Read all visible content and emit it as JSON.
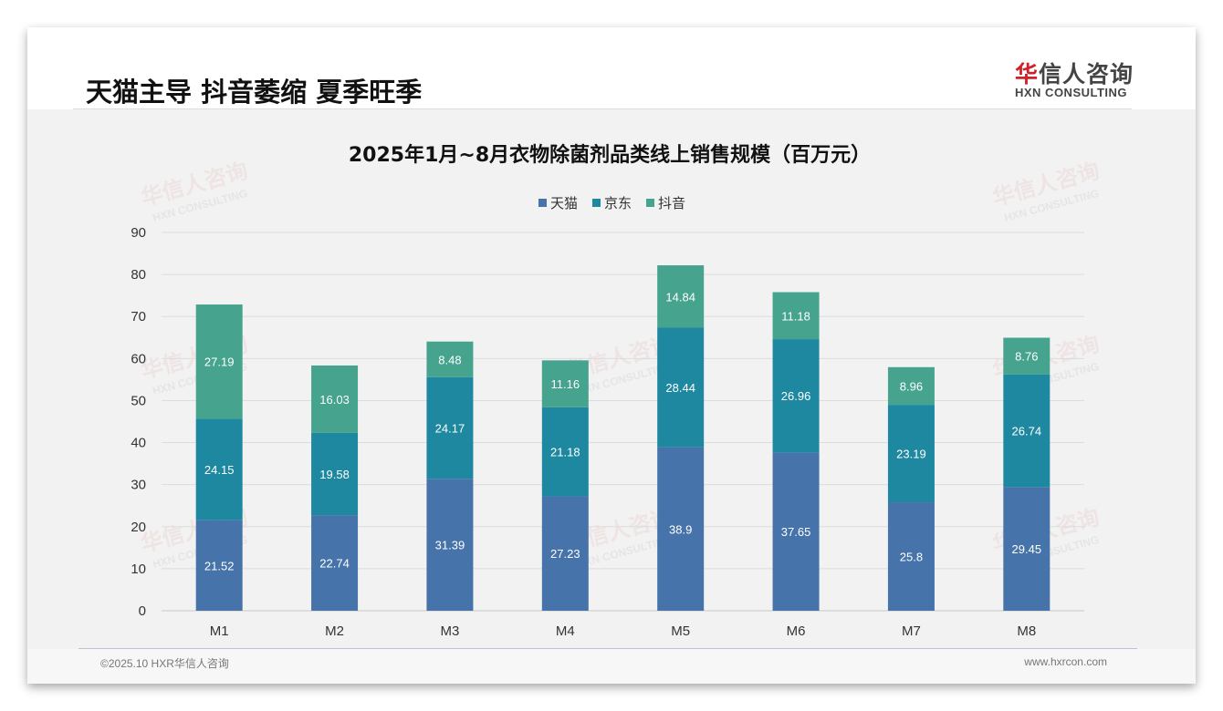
{
  "header": {
    "title": "天猫主导 抖音萎缩 夏季旺季",
    "logo_cn_red": "华",
    "logo_cn": "信人咨询",
    "logo_en": "HXN CONSULTING"
  },
  "watermark": {
    "cn": "华信人咨询",
    "en": "HXN CONSULTING"
  },
  "footer": {
    "copyright": "©2025.10 HXR华信人咨询",
    "url": "www.hxrcon.com"
  },
  "colors": {
    "tmall": "#4673a9",
    "jd": "#1e88a0",
    "douyin": "#45a38e"
  },
  "chart_data": {
    "type": "bar",
    "stacked": true,
    "title": "2025年1月~8月衣物除菌剂品类线上销售规模（百万元）",
    "categories": [
      "M1",
      "M2",
      "M3",
      "M4",
      "M5",
      "M6",
      "M7",
      "M8"
    ],
    "series": [
      {
        "name": "天猫",
        "values": [
          21.52,
          22.74,
          31.39,
          27.23,
          38.9,
          37.65,
          25.8,
          29.45
        ]
      },
      {
        "name": "京东",
        "values": [
          24.15,
          19.58,
          24.17,
          21.18,
          28.44,
          26.96,
          23.19,
          26.74
        ]
      },
      {
        "name": "抖音",
        "values": [
          27.19,
          16.03,
          8.48,
          11.16,
          14.84,
          11.18,
          8.96,
          8.76
        ]
      }
    ],
    "ylim": [
      0,
      90
    ],
    "yticks": [
      0,
      10,
      20,
      30,
      40,
      50,
      60,
      70,
      80,
      90
    ],
    "legend": "top-center",
    "grid": true,
    "xlabel": "",
    "ylabel": ""
  }
}
